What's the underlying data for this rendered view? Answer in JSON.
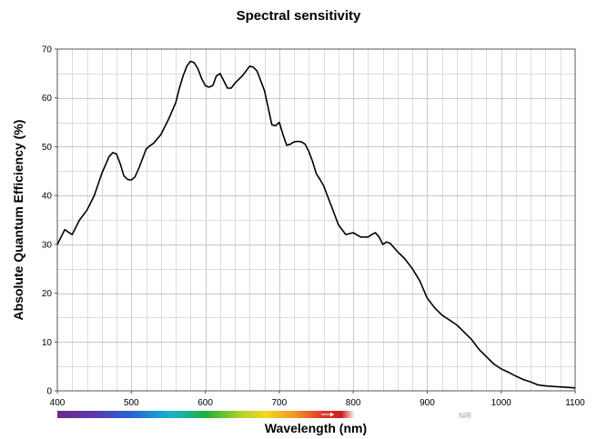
{
  "chart_data": {
    "type": "line",
    "title": "Spectral sensitivity",
    "xlabel": "Wavelength (nm)",
    "ylabel": "Absolute Quantum Efficiency (%)",
    "xlim": [
      400,
      1100
    ],
    "ylim": [
      0,
      70
    ],
    "x_ticks": [
      400,
      500,
      600,
      700,
      800,
      900,
      1000,
      1100
    ],
    "y_ticks": [
      0,
      10,
      20,
      30,
      40,
      50,
      60,
      70
    ],
    "grid": true,
    "band_label": "NIR",
    "series": [
      {
        "color": "#000000",
        "x": [
          400,
          405,
          410,
          415,
          420,
          425,
          430,
          440,
          450,
          460,
          470,
          475,
          480,
          485,
          490,
          495,
          500,
          505,
          510,
          515,
          520,
          525,
          530,
          540,
          550,
          560,
          565,
          570,
          575,
          580,
          585,
          590,
          595,
          600,
          605,
          610,
          615,
          620,
          625,
          630,
          635,
          640,
          650,
          655,
          660,
          665,
          670,
          675,
          680,
          685,
          690,
          695,
          700,
          705,
          710,
          715,
          720,
          725,
          730,
          735,
          740,
          745,
          750,
          755,
          760,
          770,
          780,
          790,
          800,
          810,
          820,
          825,
          830,
          835,
          840,
          845,
          850,
          860,
          870,
          880,
          890,
          900,
          910,
          920,
          930,
          940,
          950,
          960,
          970,
          980,
          990,
          1000,
          1010,
          1020,
          1030,
          1040,
          1050,
          1060,
          1070,
          1080,
          1090,
          1100
        ],
        "y": [
          30,
          31.5,
          33,
          32.5,
          32,
          33.5,
          35,
          37,
          40,
          44.5,
          48,
          48.8,
          48.5,
          46.5,
          44,
          43.3,
          43.2,
          43.8,
          45.5,
          47.5,
          49.5,
          50.2,
          50.7,
          52.5,
          55.5,
          59,
          62,
          64.5,
          66.5,
          67.5,
          67.2,
          66,
          64,
          62.5,
          62.2,
          62.5,
          64.5,
          65,
          63.5,
          62,
          62,
          63,
          64.5,
          65.5,
          66.5,
          66.3,
          65.5,
          63.5,
          61.5,
          58,
          54.5,
          54.3,
          55,
          52.5,
          50.3,
          50.5,
          51,
          51.1,
          51,
          50.5,
          49,
          47,
          44.5,
          43.3,
          42,
          38,
          34,
          32,
          32.4,
          31.5,
          31.5,
          32,
          32.4,
          31.5,
          30,
          30.5,
          30.2,
          28.5,
          27,
          25,
          22.5,
          19,
          17,
          15.5,
          14.5,
          13.5,
          12,
          10.5,
          8.5,
          7,
          5.5,
          4.5,
          3.8,
          3,
          2.3,
          1.8,
          1.2,
          1,
          0.9,
          0.8,
          0.7,
          0.6
        ]
      }
    ]
  }
}
